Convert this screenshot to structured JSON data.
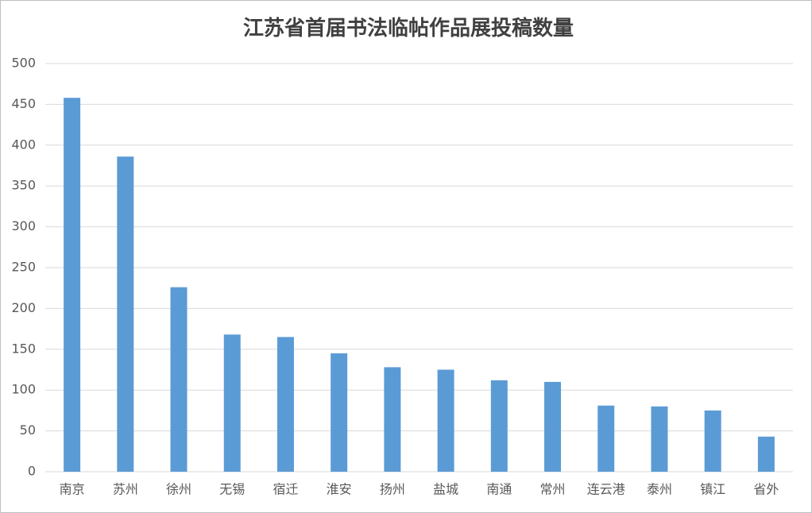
{
  "chart_data": {
    "type": "bar",
    "title": "江苏省首届书法临帖作品展投稿数量",
    "categories": [
      "南京",
      "苏州",
      "徐州",
      "无锡",
      "宿迁",
      "淮安",
      "扬州",
      "盐城",
      "南通",
      "常州",
      "连云港",
      "泰州",
      "镇江",
      "省外"
    ],
    "values": [
      458,
      386,
      226,
      168,
      165,
      145,
      128,
      125,
      112,
      110,
      81,
      80,
      75,
      43
    ],
    "color": "#5b9bd5",
    "ylim": [
      0,
      500
    ],
    "yticks": [
      0,
      50,
      100,
      150,
      200,
      250,
      300,
      350,
      400,
      450,
      500
    ],
    "grid": true
  }
}
